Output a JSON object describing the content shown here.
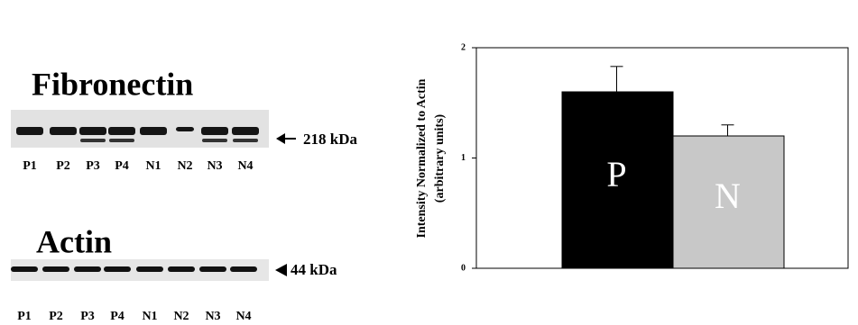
{
  "blots": [
    {
      "title": "Fibronectin",
      "lanes": [
        "P1",
        "P2",
        "P3",
        "P4",
        "N1",
        "N2",
        "N3",
        "N4"
      ],
      "marker": "218 kDa"
    },
    {
      "title": "Actin",
      "lanes": [
        "P1",
        "P2",
        "P3",
        "P4",
        "N1",
        "N2",
        "N3",
        "N4"
      ],
      "marker": "44 kDa"
    }
  ],
  "chart_data": {
    "type": "bar",
    "ylabel": [
      "Intensity Normalized to Actin",
      "(arbitrary units)"
    ],
    "categories": [
      "P",
      "N"
    ],
    "values": [
      1.6,
      1.2
    ],
    "errors": [
      0.23,
      0.1
    ],
    "colors": [
      "#000000",
      "#c8c8c8"
    ],
    "ylim": [
      0,
      2
    ],
    "yticks": [
      0,
      1,
      2
    ]
  }
}
